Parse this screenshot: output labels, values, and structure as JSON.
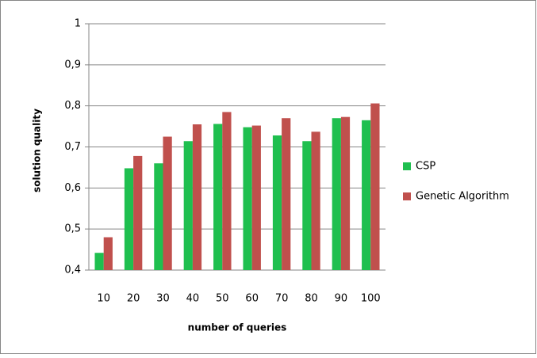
{
  "chart_data": {
    "type": "bar",
    "categories": [
      "10",
      "20",
      "30",
      "40",
      "50",
      "60",
      "70",
      "80",
      "90",
      "100"
    ],
    "series": [
      {
        "name": "CSP",
        "color": "#1fbf4f",
        "values": [
          0.442,
          0.648,
          0.66,
          0.714,
          0.756,
          0.748,
          0.728,
          0.714,
          0.77,
          0.765
        ]
      },
      {
        "name": "Genetic Algorithm",
        "color": "#c0504d",
        "values": [
          0.48,
          0.678,
          0.725,
          0.755,
          0.785,
          0.752,
          0.77,
          0.737,
          0.773,
          0.806
        ]
      }
    ],
    "xlabel": "number of queries",
    "ylabel": "solution quality",
    "ylim": [
      0.4,
      1
    ],
    "yticks": [
      {
        "value": 0.4,
        "label": "0,4"
      },
      {
        "value": 0.5,
        "label": "0,5"
      },
      {
        "value": 0.6,
        "label": "0,6"
      },
      {
        "value": 0.7,
        "label": "0,7"
      },
      {
        "value": 0.8,
        "label": "0,8"
      },
      {
        "value": 0.9,
        "label": "0,9"
      },
      {
        "value": 1,
        "label": "1"
      }
    ],
    "grid": true,
    "legend": "right"
  }
}
